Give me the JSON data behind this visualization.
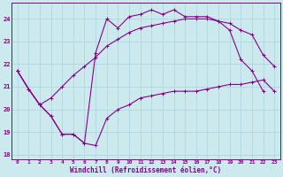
{
  "title": "",
  "xlabel": "Windchill (Refroidissement éolien,°C)",
  "ylabel": "",
  "background_color": "#cce9ee",
  "grid_color": "#add8e0",
  "line_color": "#880088",
  "xlim": [
    -0.5,
    23.5
  ],
  "ylim": [
    17.8,
    24.7
  ],
  "yticks": [
    18,
    19,
    20,
    21,
    22,
    23,
    24
  ],
  "xticks": [
    0,
    1,
    2,
    3,
    4,
    5,
    6,
    7,
    8,
    9,
    10,
    11,
    12,
    13,
    14,
    15,
    16,
    17,
    18,
    19,
    20,
    21,
    22,
    23
  ],
  "line1_x": [
    0,
    1,
    2,
    3,
    4,
    5,
    6,
    7,
    8,
    9,
    10,
    11,
    12,
    13,
    14,
    15,
    16,
    17,
    18,
    19,
    20,
    21,
    22,
    23
  ],
  "line1_y": [
    21.7,
    20.9,
    20.2,
    19.7,
    18.9,
    18.9,
    18.5,
    18.4,
    19.6,
    20.0,
    20.2,
    20.5,
    20.6,
    20.7,
    20.8,
    20.8,
    20.8,
    20.9,
    21.0,
    21.1,
    21.1,
    21.2,
    21.3,
    20.8
  ],
  "line2_x": [
    0,
    1,
    2,
    3,
    4,
    5,
    6,
    7,
    8,
    9,
    10,
    11,
    12,
    13,
    14,
    15,
    16,
    17,
    18,
    19,
    20,
    21,
    22
  ],
  "line2_y": [
    21.7,
    20.9,
    20.2,
    19.7,
    18.9,
    18.9,
    18.5,
    22.5,
    24.0,
    23.6,
    24.1,
    24.2,
    24.4,
    24.2,
    24.4,
    24.1,
    24.1,
    24.1,
    23.9,
    23.5,
    22.2,
    21.7,
    20.8
  ],
  "line3_x": [
    0,
    1,
    2,
    3,
    4,
    5,
    6,
    7,
    8,
    9,
    10,
    11,
    12,
    13,
    14,
    15,
    16,
    17,
    18,
    19,
    20,
    21,
    22,
    23
  ],
  "line3_y": [
    21.7,
    20.9,
    20.2,
    20.5,
    21.0,
    21.5,
    21.9,
    22.3,
    22.8,
    23.1,
    23.4,
    23.6,
    23.7,
    23.8,
    23.9,
    24.0,
    24.0,
    24.0,
    23.9,
    23.8,
    23.5,
    23.3,
    22.4,
    21.9
  ]
}
